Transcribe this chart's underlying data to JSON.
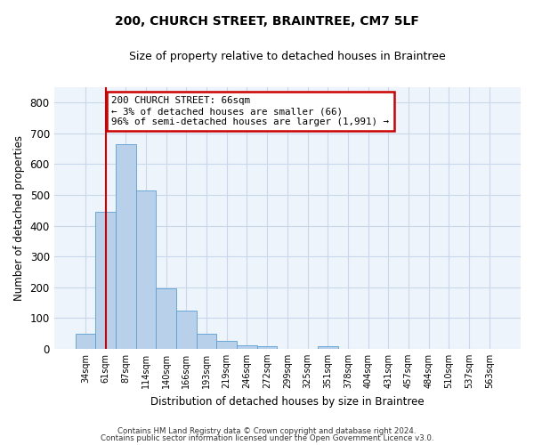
{
  "title1": "200, CHURCH STREET, BRAINTREE, CM7 5LF",
  "title2": "Size of property relative to detached houses in Braintree",
  "xlabel": "Distribution of detached houses by size in Braintree",
  "ylabel": "Number of detached properties",
  "bar_labels": [
    "34sqm",
    "61sqm",
    "87sqm",
    "114sqm",
    "140sqm",
    "166sqm",
    "193sqm",
    "219sqm",
    "246sqm",
    "272sqm",
    "299sqm",
    "325sqm",
    "351sqm",
    "378sqm",
    "404sqm",
    "431sqm",
    "457sqm",
    "484sqm",
    "510sqm",
    "537sqm",
    "563sqm"
  ],
  "bar_values": [
    50,
    445,
    665,
    515,
    195,
    125,
    50,
    25,
    10,
    8,
    0,
    0,
    8,
    0,
    0,
    0,
    0,
    0,
    0,
    0,
    0
  ],
  "bar_color": "#b8d0ea",
  "bar_edge_color": "#5a9fd4",
  "bar_width": 1.0,
  "ylim": [
    0,
    850
  ],
  "yticks": [
    0,
    100,
    200,
    300,
    400,
    500,
    600,
    700,
    800
  ],
  "grid_color": "#c8d8ea",
  "bg_color": "#eef4fb",
  "vline_x": 1.0,
  "vline_color": "#cc0000",
  "annotation_text": "200 CHURCH STREET: 66sqm\n← 3% of detached houses are smaller (66)\n96% of semi-detached houses are larger (1,991) →",
  "annotation_box_color": "#cc0000",
  "footer1": "Contains HM Land Registry data © Crown copyright and database right 2024.",
  "footer2": "Contains public sector information licensed under the Open Government Licence v3.0."
}
